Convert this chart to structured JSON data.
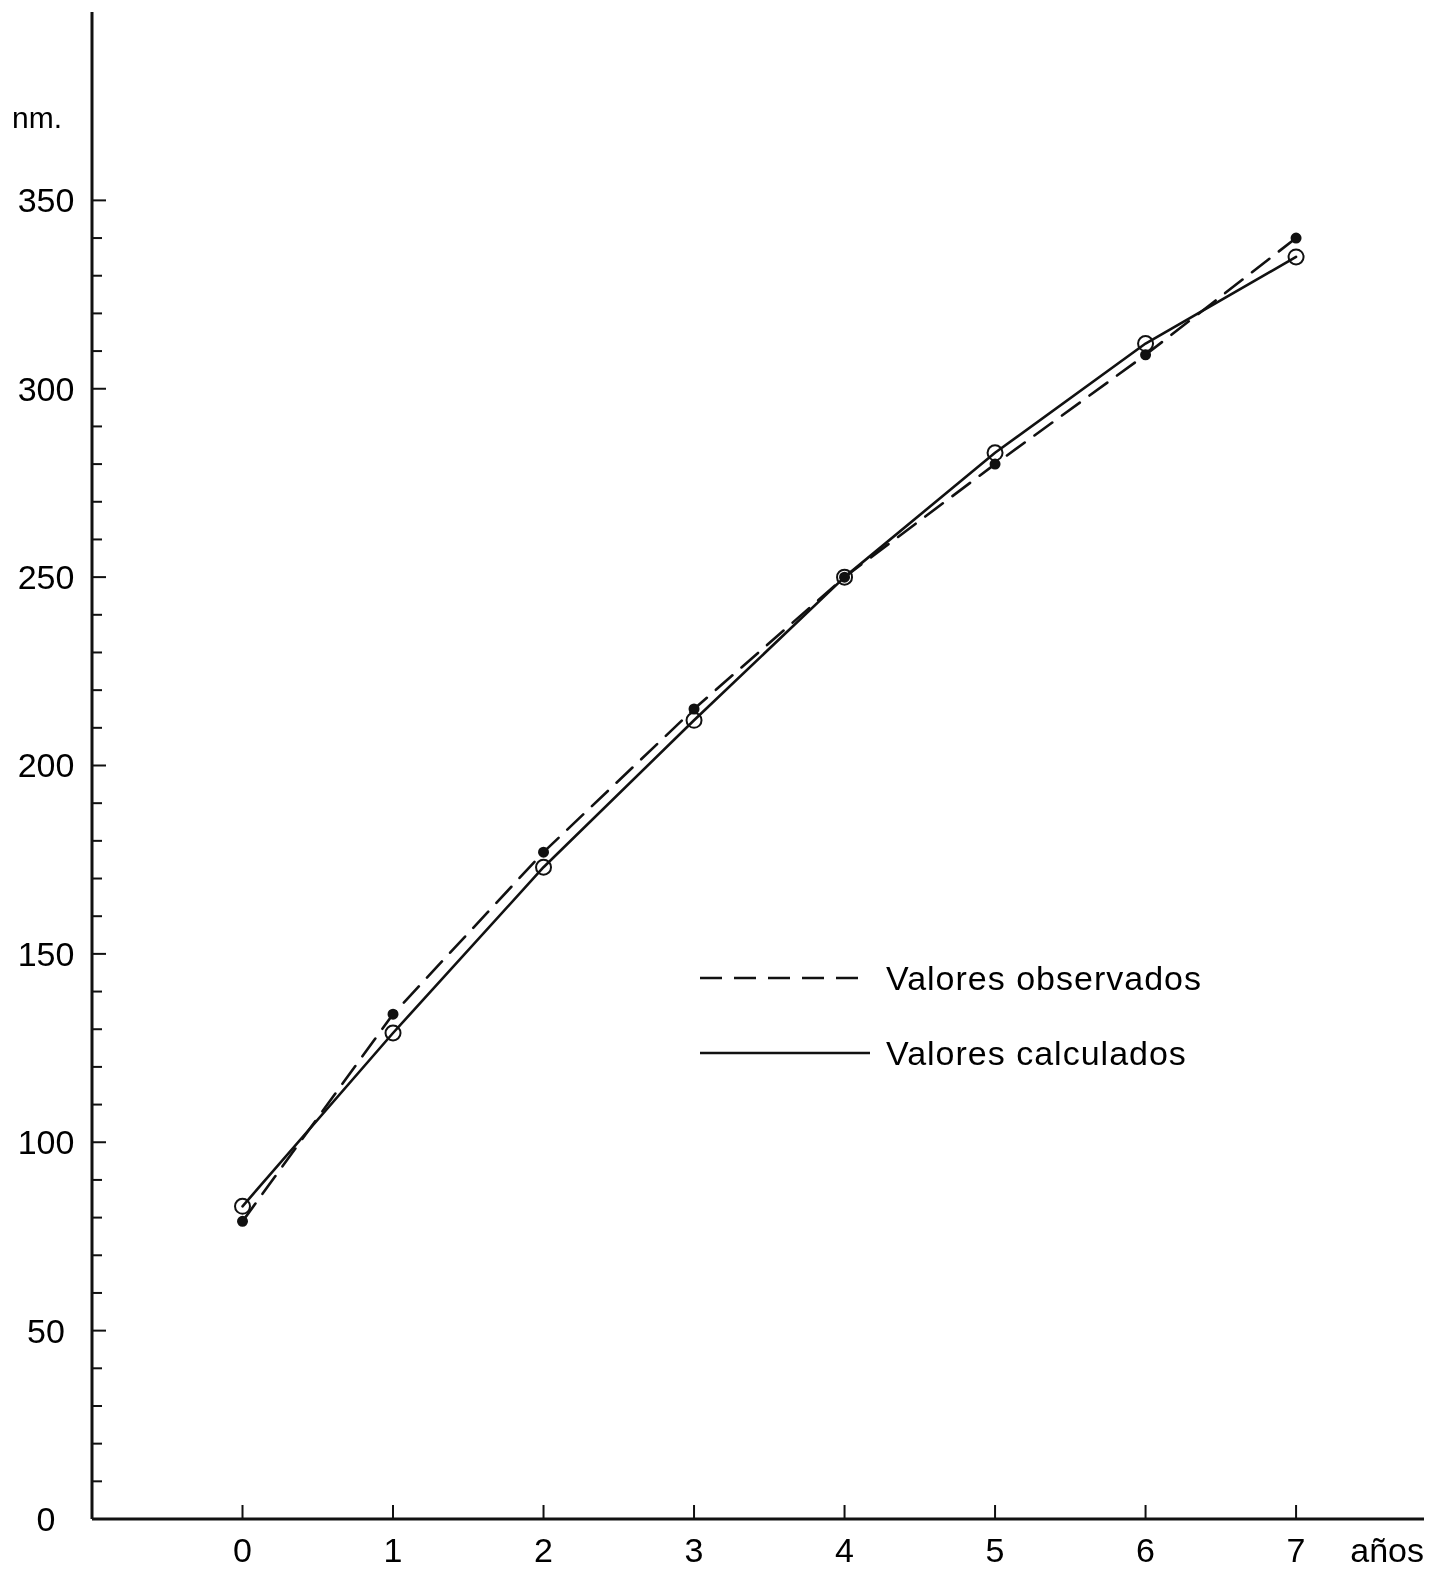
{
  "chart_data": {
    "type": "line",
    "xlabel": "años",
    "ylabel": "nm.",
    "x": [
      0,
      1,
      2,
      3,
      4,
      5,
      6,
      7
    ],
    "xlim": [
      -1,
      7.85
    ],
    "xticks": [
      0,
      1,
      2,
      3,
      4,
      5,
      6,
      7
    ],
    "ylim": [
      0,
      400
    ],
    "yticks": [
      0,
      {
        "value": 10,
        "label": null
      },
      {
        "value": 20,
        "label": null
      },
      {
        "value": 30,
        "label": null
      },
      {
        "value": 40,
        "label": null
      },
      50,
      {
        "value": 60,
        "label": null
      },
      {
        "value": 70,
        "label": null
      },
      {
        "value": 80,
        "label": null
      },
      {
        "value": 90,
        "label": null
      },
      100,
      {
        "value": 110,
        "label": null
      },
      {
        "value": 120,
        "label": null
      },
      {
        "value": 130,
        "label": null
      },
      {
        "value": 140,
        "label": null
      },
      150,
      {
        "value": 160,
        "label": null
      },
      {
        "value": 170,
        "label": null
      },
      {
        "value": 180,
        "label": null
      },
      {
        "value": 190,
        "label": null
      },
      200,
      {
        "value": 210,
        "label": null
      },
      {
        "value": 220,
        "label": null
      },
      {
        "value": 230,
        "label": null
      },
      {
        "value": 240,
        "label": null
      },
      250,
      {
        "value": 260,
        "label": null
      },
      {
        "value": 270,
        "label": null
      },
      {
        "value": 280,
        "label": null
      },
      {
        "value": 290,
        "label": null
      },
      300,
      {
        "value": 310,
        "label": null
      },
      {
        "value": 320,
        "label": null
      },
      {
        "value": 330,
        "label": null
      },
      {
        "value": 340,
        "label": null
      },
      350
    ],
    "grid": false,
    "legend": "right",
    "marker": "circle",
    "series": [
      {
        "name": "Valores observados",
        "color": "#111111",
        "line_style": "dashed",
        "values": [
          79,
          134,
          177,
          215,
          250,
          280,
          309,
          340
        ]
      },
      {
        "name": "Valores calculados",
        "color": "#111111",
        "line_style": "solid",
        "values": [
          83,
          129,
          173,
          212,
          250,
          283,
          312,
          335
        ]
      }
    ]
  }
}
